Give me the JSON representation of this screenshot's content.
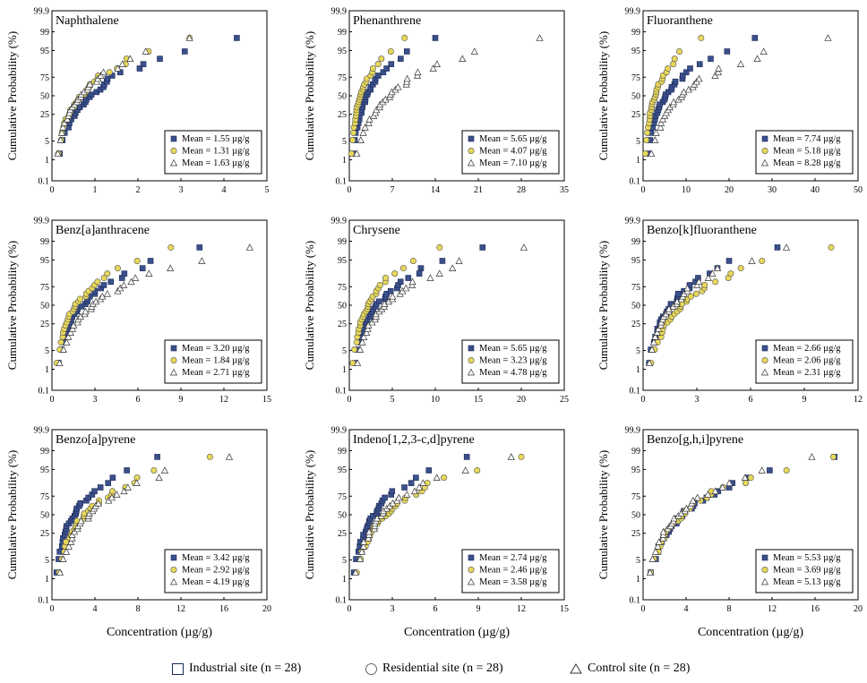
{
  "colors": {
    "industrial": "#3b4f8a",
    "residential": "#e8d85a",
    "control": "#ffffff",
    "outline": "#333333"
  },
  "common": {
    "ylabel": "Cumulative Probability (%)",
    "xlabel": "Concentration (µg/g)",
    "yticks": [
      "99.9",
      "99",
      "95",
      "75",
      "50",
      "25",
      "5",
      "1",
      "0.1"
    ],
    "yticks_values": [
      99.9,
      99,
      95,
      75,
      50,
      25,
      5,
      1,
      0.1
    ]
  },
  "legend": {
    "industrial_label": "Industrial site (n = 28)",
    "residential_label": "Residential site (n = 28)",
    "control_label": "Control site (n = 28)"
  },
  "chart_data": [
    {
      "type": "scatter",
      "title": "Naphthalene",
      "xlim": [
        0,
        5
      ],
      "xticks": [
        0,
        1,
        2,
        3,
        4,
        5
      ],
      "means": [
        "Mean = 1.55 µg/g",
        "Mean = 1.31 µg/g",
        "Mean = 1.63 µg/g"
      ],
      "series": [
        {
          "name": "Industrial",
          "max": 4.3
        },
        {
          "name": "Residential",
          "max": 3.2
        },
        {
          "name": "Control",
          "max": 3.2
        }
      ]
    },
    {
      "type": "scatter",
      "title": "Phenanthrene",
      "xlim": [
        0,
        35
      ],
      "xticks": [
        0,
        7,
        14,
        21,
        28,
        35
      ],
      "means": [
        "Mean = 5.65 µg/g",
        "Mean = 4.07 µg/g",
        "Mean = 7.10 µg/g"
      ],
      "series": [
        {
          "name": "Industrial",
          "max": 14
        },
        {
          "name": "Residential",
          "max": 9
        },
        {
          "name": "Control",
          "max": 31
        }
      ]
    },
    {
      "type": "scatter",
      "title": "Fluoranthene",
      "xlim": [
        0,
        50
      ],
      "xticks": [
        0,
        10,
        20,
        30,
        40,
        50
      ],
      "means": [
        "Mean = 7.74 µg/g",
        "Mean = 5.18 µg/g",
        "Mean = 8.28 µg/g"
      ],
      "series": [
        {
          "name": "Industrial",
          "max": 26
        },
        {
          "name": "Residential",
          "max": 13.5
        },
        {
          "name": "Control",
          "max": 43
        }
      ]
    },
    {
      "type": "scatter",
      "title": "Benz[a]anthracene",
      "xlim": [
        0,
        15
      ],
      "xticks": [
        0,
        3,
        6,
        9,
        12,
        15
      ],
      "means": [
        "Mean = 3.20 µg/g",
        "Mean = 1.84 µg/g",
        "Mean = 2.71 µg/g"
      ],
      "series": [
        {
          "name": "Industrial",
          "max": 10.3
        },
        {
          "name": "Residential",
          "max": 8.3
        },
        {
          "name": "Control",
          "max": 13.8
        }
      ]
    },
    {
      "type": "scatter",
      "title": "Chrysene",
      "xlim": [
        0,
        25
      ],
      "xticks": [
        0,
        5,
        10,
        15,
        20,
        25
      ],
      "means": [
        "Mean = 5.65 µg/g",
        "Mean = 3.23 µg/g",
        "Mean = 4.78 µg/g"
      ],
      "series": [
        {
          "name": "Industrial",
          "max": 15.5
        },
        {
          "name": "Residential",
          "max": 10.5
        },
        {
          "name": "Control",
          "max": 20.3
        }
      ]
    },
    {
      "type": "scatter",
      "title": "Benzo[k]fluoranthene",
      "xlim": [
        0,
        12
      ],
      "xticks": [
        0,
        3,
        6,
        9,
        12
      ],
      "means": [
        "Mean = 2.66 µg/g",
        "Mean = 2.06 µg/g",
        "Mean = 2.31 µg/g"
      ],
      "series": [
        {
          "name": "Industrial",
          "max": 7.5
        },
        {
          "name": "Residential",
          "max": 10.5
        },
        {
          "name": "Control",
          "max": 8.0
        }
      ]
    },
    {
      "type": "scatter",
      "title": "Benzo[a]pyrene",
      "xlim": [
        0,
        20
      ],
      "xticks": [
        0,
        4,
        8,
        12,
        16,
        20
      ],
      "means": [
        "Mean = 3.42 µg/g",
        "Mean = 2.92 µg/g",
        "Mean = 4.19 µg/g"
      ],
      "series": [
        {
          "name": "Industrial",
          "max": 9.8
        },
        {
          "name": "Residential",
          "max": 14.7
        },
        {
          "name": "Control",
          "max": 16.5
        }
      ]
    },
    {
      "type": "scatter",
      "title": "Indeno[1,2,3-c,d]pyrene",
      "xlim": [
        0,
        15
      ],
      "xticks": [
        0,
        3,
        6,
        9,
        12,
        15
      ],
      "means": [
        "Mean = 2.74 µg/g",
        "Mean = 2.46 µg/g",
        "Mean = 3.58 µg/g"
      ],
      "series": [
        {
          "name": "Industrial",
          "max": 8.2
        },
        {
          "name": "Residential",
          "max": 12.0
        },
        {
          "name": "Control",
          "max": 11.3
        }
      ]
    },
    {
      "type": "scatter",
      "title": "Benzo[g,h,i]pyrene",
      "xlim": [
        0,
        20
      ],
      "xticks": [
        0,
        4,
        8,
        12,
        16,
        20
      ],
      "means": [
        "Mean = 5.53 µg/g",
        "Mean = 3.69 µg/g",
        "Mean = 5.13 µg/g"
      ],
      "series": [
        {
          "name": "Industrial",
          "max": 17.8
        },
        {
          "name": "Residential",
          "max": 17.7
        },
        {
          "name": "Control",
          "max": 15.7
        }
      ]
    }
  ]
}
